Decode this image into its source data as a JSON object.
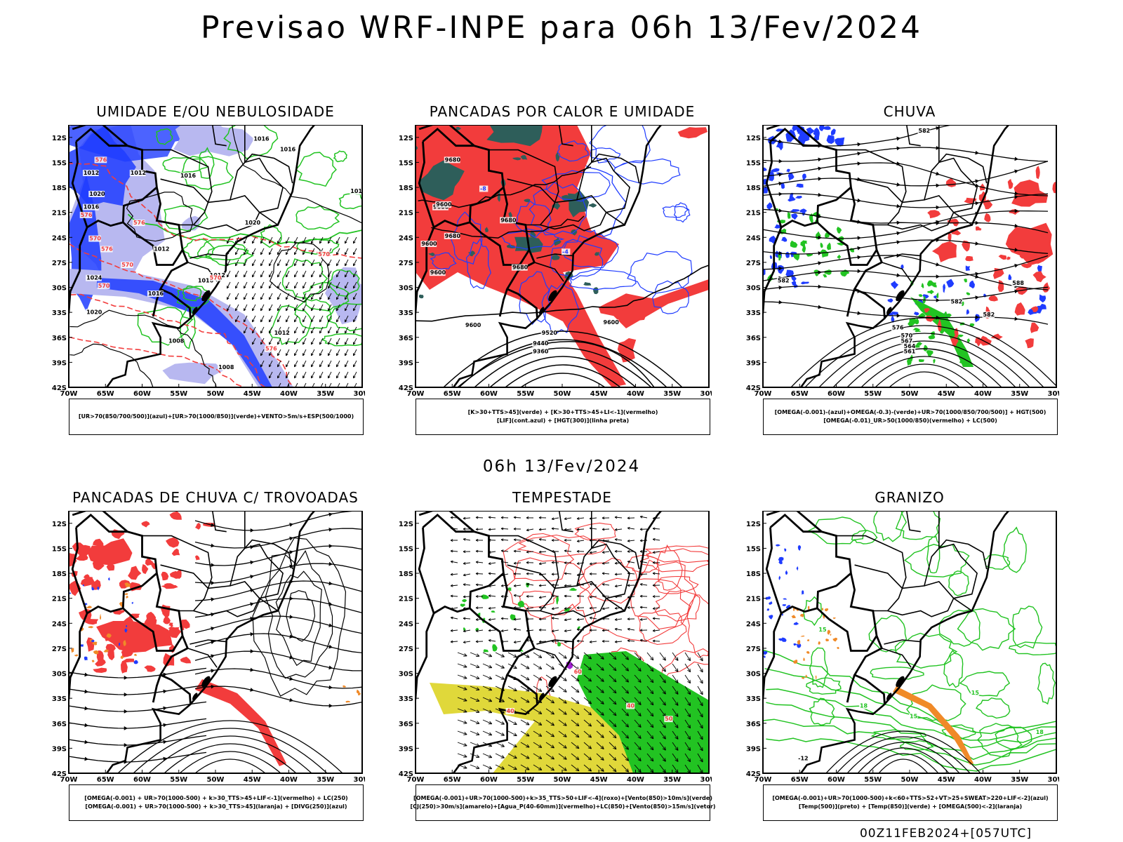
{
  "main_title": "Previsao WRF-INPE  para 06h 13/Fev/2024",
  "mid_title": "06h 13/Fev/2024",
  "footer": "00Z11FEB2024+[057UTC]",
  "axes": {
    "lat_labels": [
      "12S",
      "15S",
      "18S",
      "21S",
      "24S",
      "27S",
      "30S",
      "33S",
      "36S",
      "39S",
      "42S"
    ],
    "lon_labels": [
      "70W",
      "65W",
      "60W",
      "55W",
      "50W",
      "45W",
      "40W",
      "35W",
      "30W"
    ]
  },
  "colors": {
    "blue": "#1f3cff",
    "light_blue": "#b8b8f0",
    "green": "#22c322",
    "red": "#f23c3c",
    "dark_teal": "#2e5e5a",
    "yellow": "#e0d83a",
    "orange": "#f08a28",
    "black": "#000000"
  },
  "panels": [
    {
      "title": "UMIDADE E/OU NEBULOSIDADE",
      "legend": [
        "[UR>70(850/700/500)](azul)+[UR>70(1000/850)](verde)+VENTO>5m/s+ESP(500/1000)"
      ],
      "labels": [
        "1016",
        "1016",
        "1016",
        "1012",
        "1012",
        "1016",
        "1020",
        "1016",
        "1012",
        "1016",
        "1012",
        "1016",
        "1020",
        "1024",
        "1020",
        "1008",
        "1008",
        "1012",
        "570",
        "576",
        "576",
        "570",
        "570",
        "576",
        "576",
        "570",
        "576",
        "570"
      ]
    },
    {
      "title": "PANCADAS POR CALOR E UMIDADE",
      "legend": [
        "[K>30+TTS>45](verde) + [K>30+TTS>45+LI<-1](vermelho)",
        "[LIF](cont.azul) + [HGT(300)](linha preta)"
      ],
      "labels": [
        "9680",
        "9600",
        "9600",
        "9680",
        "9680",
        "9680",
        "9600",
        "9600",
        "9600",
        "9520",
        "9440",
        "9360",
        "9600",
        "-8",
        "-4"
      ]
    },
    {
      "title": "CHUVA",
      "legend": [
        "[OMEGA(-0.001)-(azul)+OMEGA(-0.3)-(verde)+UR>70(1000/850/700/500)] + HGT(500)",
        "[OMEGA(-0.01)_UR>50(1000/850)(vermelho) + LC(500)"
      ],
      "labels": [
        "582",
        "582",
        "582",
        "588",
        "582",
        "576",
        "570",
        "567",
        "564",
        "561"
      ]
    },
    {
      "title": "PANCADAS DE CHUVA C/ TROVOADAS",
      "legend": [
        "[OMEGA(-0.001) + UR>70(1000-500) + k>30_TTS>45+LIF<-1](vermelho) + LC(250)",
        "[OMEGA(-0.001) + UR>70(1000-500) + k>30_TTS>45](laranja) + [DIVG(250)](azul)"
      ],
      "labels": []
    },
    {
      "title": "TEMPESTADE",
      "legend": [
        "[OMEGA(-0.001)+UR>70(1000-500)+k>35_TTS>50+LIF<-4](roxo)+[Vento(850)>10m/s](verde)",
        "[CJ(250)>30m/s](amarelo)+[Agua_P(40-60mm)](vermelho)+LC(850)+[Vento(850)>15m/s](vetor)"
      ],
      "labels": [
        "40",
        "60",
        "40",
        "50"
      ]
    },
    {
      "title": "GRANIZO",
      "legend": [
        "[OMEGA(-0.001)+UR>70(1000-500)+k<60+TTS>52+VT>25+SWEAT>220+LIF<-2](azul)",
        "[Temp(500)](preto) + [Temp(850)](verde) + [OMEGA(500)<-2](laranja)"
      ],
      "labels": [
        "-12",
        "15",
        "18",
        "15",
        "15",
        "18"
      ]
    }
  ]
}
